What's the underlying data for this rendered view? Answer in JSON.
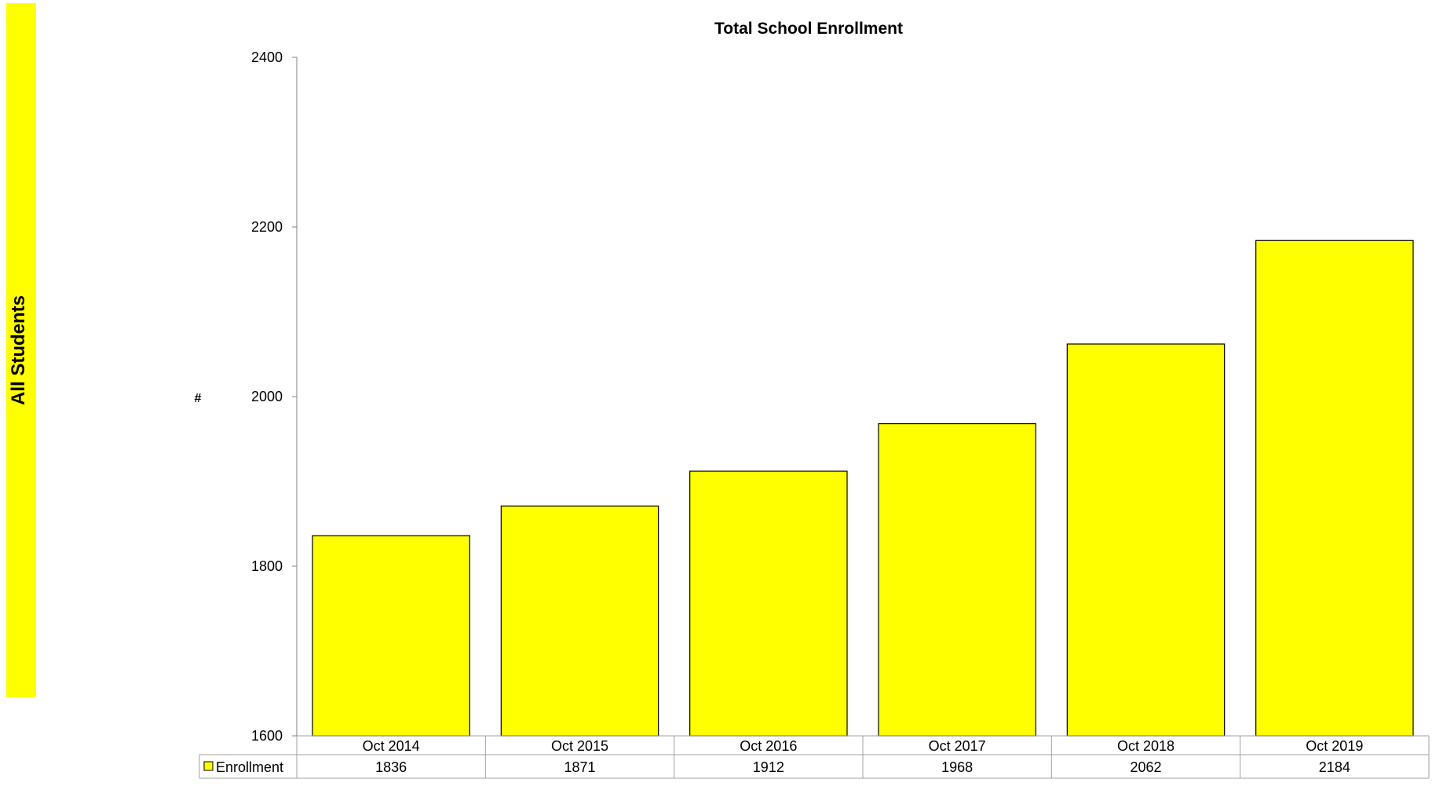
{
  "side_banner": {
    "label": "All Students",
    "color": "#ffff00"
  },
  "chart_data": {
    "type": "bar",
    "title": "Total School Enrollment",
    "ylabel": "#",
    "xlabel": "",
    "categories": [
      "Oct 2014",
      "Oct 2015",
      "Oct 2016",
      "Oct 2017",
      "Oct 2018",
      "Oct 2019"
    ],
    "series": [
      {
        "name": "Enrollment",
        "values": [
          1836,
          1871,
          1912,
          1968,
          2062,
          2184
        ],
        "color": "#ffff00"
      }
    ],
    "ylim": [
      1600,
      2400
    ],
    "yticks": [
      1600,
      1800,
      2000,
      2200,
      2400
    ],
    "grid": false,
    "data_table": true
  }
}
